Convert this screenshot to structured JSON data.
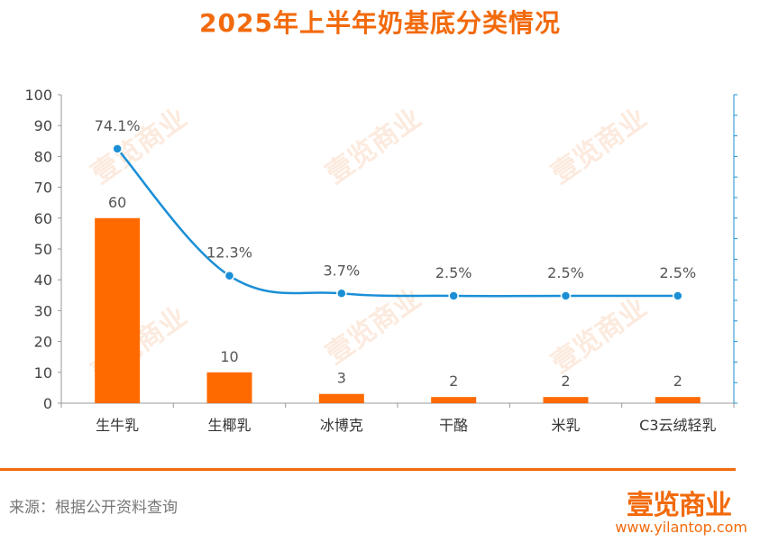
{
  "title": "2025年上半年奶基底分类情况",
  "source": "来源：根据公开资料查询",
  "logo": "壹览商业",
  "url": "www.yilantop.com",
  "watermark": "壹览商业",
  "colors": {
    "bar": "#ff6a00",
    "line": "#1b8fd6",
    "accent": "#f26a0c"
  },
  "chart_data": {
    "type": "bar",
    "categories": [
      "生牛乳",
      "生椰乳",
      "冰博克",
      "干酪",
      "米乳",
      "C3云绒轻乳"
    ],
    "series": [
      {
        "type": "bar",
        "values": [
          60,
          10,
          3,
          2,
          2,
          2
        ],
        "labels": [
          "60",
          "10",
          "3",
          "2",
          "2",
          "2"
        ]
      },
      {
        "type": "line",
        "values": [
          74.1,
          12.3,
          3.7,
          2.5,
          2.5,
          2.5
        ],
        "labels": [
          "74.1%",
          "12.3%",
          "3.7%",
          "2.5%",
          "2.5%",
          "2.5%"
        ]
      }
    ],
    "ylim": [
      0,
      100
    ],
    "yticks": [
      "0",
      "10",
      "20",
      "30",
      "40",
      "50",
      "60",
      "70",
      "80",
      "90",
      "100"
    ],
    "y2_axis": "right, unlabeled",
    "grid": false,
    "legend": "none"
  }
}
